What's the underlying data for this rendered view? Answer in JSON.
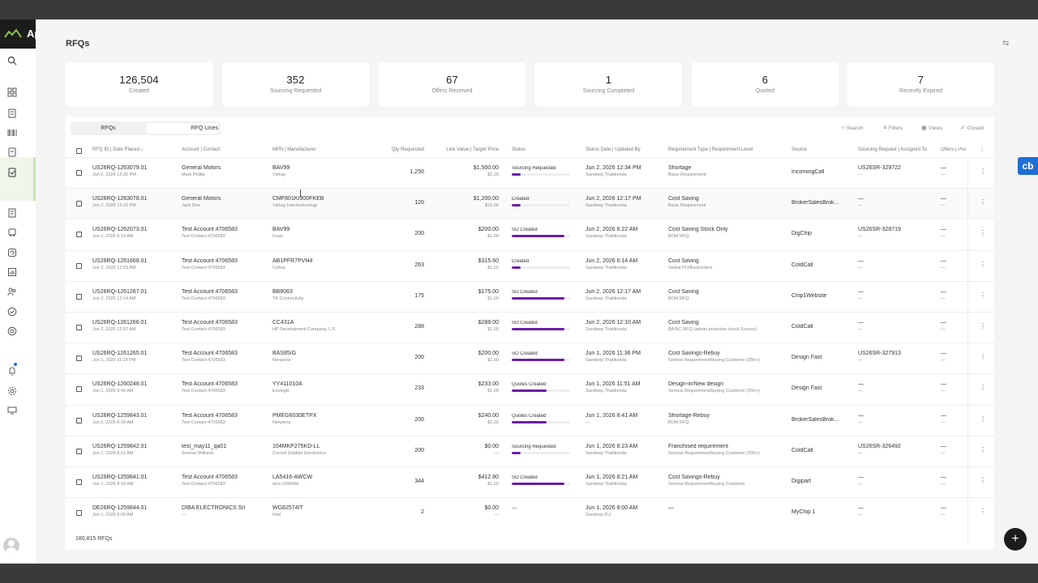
{
  "app": {
    "logo_text": "Ap",
    "page_title": "RFQs"
  },
  "sidebar": {
    "icons": [
      "search-icon",
      "dashboard-icon",
      "building-icon",
      "barcode-icon",
      "document-icon",
      "rfq-icon",
      "report-icon",
      "truck-icon",
      "cycle-icon",
      "chart-icon",
      "users-icon",
      "check-icon",
      "target-icon",
      "bell-icon",
      "gear-icon",
      "monitor-icon"
    ]
  },
  "cards": [
    {
      "value": "126,504",
      "label": "Created"
    },
    {
      "value": "352",
      "label": "Sourcing Requested"
    },
    {
      "value": "67",
      "label": "Offers Received"
    },
    {
      "value": "1",
      "label": "Sourcing Completed"
    },
    {
      "value": "6",
      "label": "Quoted"
    },
    {
      "value": "7",
      "label": "Recently Expired"
    }
  ],
  "tabs": {
    "rfqs": "RFQs",
    "rfq_lines": "RFQ Lines"
  },
  "tools": {
    "search": "Search",
    "filters": "Filters",
    "views": "Views",
    "closed": "Closed"
  },
  "headers": {
    "rfq": "RFQ ID | Date Placed ↓",
    "account": "Account | Contact",
    "mpn": "MPN | Manufacturer",
    "qty": "Qty Requested",
    "value": "Line Value | Target Price",
    "status": "Status",
    "status_date": "Status Date | Updated By",
    "req": "Requirement Type | Requirement Level",
    "source": "Source",
    "sourcing": "Sourcing Request | Assigned To",
    "offers": "Offers | Pric"
  },
  "rows": [
    {
      "id": "US26RQ-1263079.01",
      "date": "Jun 2, 2026 12:20 PM",
      "account": "General Motors",
      "contact": "Mark Phillip",
      "mpn": "BAV99",
      "mfr": "Vishay",
      "qty": "1,250",
      "value": "$1,500.00",
      "target": "$1.20",
      "status": "Sourcing Requested",
      "progress": 0.15,
      "sdate": "Jun 2, 2026 12:34 PM",
      "by": "Sandeep Thatikonda",
      "rtype": "Shortage",
      "rlevel": "Basic Requirement",
      "source": "IncomingCall",
      "sreq": "US26SR-329722",
      "assigned": "—",
      "offers": "—",
      "price": "—"
    },
    {
      "id": "US26RQ-1263078.01",
      "date": "Jun 2, 2026 12:15 PM",
      "account": "General Motors",
      "contact": "Jack Doe",
      "mpn": "CMF601KI300FKEB",
      "mfr": "Vishay Intertechnology",
      "qty": "120",
      "value": "$1,200.00",
      "target": "$10.00",
      "status": "Created",
      "progress": 0.15,
      "sdate": "Jun 2, 2026 12:17 PM",
      "by": "Sandeep Thatikonda",
      "rtype": "Cost Saving",
      "rlevel": "Basic Requirement",
      "source": "BrokerSalesBrok...",
      "sreq": "—",
      "assigned": "—",
      "offers": "—",
      "price": "—"
    },
    {
      "id": "US26RQ-1262073.01",
      "date": "Jun 2, 2026 6:13 AM",
      "account": "Test Account 4706583",
      "contact": "Test Contact-4706583",
      "mpn": "BAV99",
      "mfr": "Invac",
      "qty": "200",
      "value": "$200.00",
      "target": "$1.00",
      "status": "SO Created",
      "progress": 0.9,
      "sdate": "Jun 2, 2026 6:22 AM",
      "by": "Sandeep Thatikonda",
      "rtype": "Cost Saving Stock Only",
      "rlevel": "BOM RFQ",
      "source": "DigChip",
      "sreq": "US26SR-328719",
      "assigned": "—",
      "offers": "—",
      "price": "—"
    },
    {
      "id": "US26RQ-1261668.01",
      "date": "Jun 2, 2026 12:59 AM",
      "account": "Test Account 4706583",
      "contact": "Test Contact-4706583",
      "mpn": "AB1PFR7PVH4",
      "mfr": "Cytiva",
      "qty": "263",
      "value": "$315.60",
      "target": "$1.20",
      "status": "Created",
      "progress": 0.15,
      "sdate": "Jun 2, 2026 6:14 AM",
      "by": "Sandeep Thatikonda",
      "rtype": "Cost Saving",
      "rlevel": "Verbal PO/Backorders",
      "source": "ColdCall",
      "sreq": "—",
      "assigned": "—",
      "offers": "—",
      "price": "—"
    },
    {
      "id": "US26RQ-1261267.01",
      "date": "Jun 2, 2026 12:14 AM",
      "account": "Test Account 4706583",
      "contact": "Test Contact-4706583",
      "mpn": "BB8063",
      "mfr": "TE Connectivity",
      "qty": "175",
      "value": "$175.00",
      "target": "$1.00",
      "status": "SO Created",
      "progress": 0.9,
      "sdate": "Jun 2, 2026 12:17 AM",
      "by": "Sandeep Thatikonda",
      "rtype": "Cost Saving",
      "rlevel": "BOM RFQ",
      "source": "Chip1Website",
      "sreq": "—",
      "assigned": "—",
      "offers": "—",
      "price": "—"
    },
    {
      "id": "US26RQ-1261266.01",
      "date": "Jun 2, 2026 12:07 AM",
      "account": "Test Account 4706583",
      "contact": "Test Contact-4706583",
      "mpn": "CC431A",
      "mfr": "HP Development Company, L.P.",
      "qty": "288",
      "value": "$288.00",
      "target": "$1.00",
      "status": "SO Created",
      "progress": 0.9,
      "sdate": "Jun 2, 2026 12:10 AM",
      "by": "Sandeep Thatikonda",
      "rtype": "Cost Saving",
      "rlevel": "BASIC RFQ (admin proactive check Excess)",
      "source": "ColdCall",
      "sreq": "—",
      "assigned": "—",
      "offers": "—",
      "price": "—"
    },
    {
      "id": "US26RQ-1261265.01",
      "date": "Jun 1, 2026 11:29 PM",
      "account": "Test Account 4706583",
      "contact": "Test Contact-4706583",
      "mpn": "BAS85/G",
      "mfr": "Nexperia",
      "qty": "200",
      "value": "$200.00",
      "target": "$1.00",
      "status": "SO Created",
      "progress": 0.9,
      "sdate": "Jun 1, 2026 11:36 PM",
      "by": "Sandeep Thatikonda",
      "rtype": "Cost Savings-Rebuy",
      "rlevel": "Serious Requirement/buying Customer (25K+)",
      "source": "Design Fast",
      "sreq": "US26SR-327913",
      "assigned": "—",
      "offers": "—",
      "price": "—"
    },
    {
      "id": "US26RQ-1260248.01",
      "date": "Jun 1, 2026 9:44 AM",
      "account": "Test Account 4706583",
      "contact": "Test Contact-4706583",
      "mpn": "YY411010A",
      "mfr": "Enviegis",
      "qty": "233",
      "value": "$233.00",
      "target": "$1.00",
      "status": "Quotes Created",
      "progress": 0.6,
      "sdate": "Jun 1, 2026 11:51 AM",
      "by": "Sandeep Thatikonda",
      "rtype": "Design-in/New design",
      "rlevel": "Serious Requirement/buying Customer (25K+)",
      "source": "Design Fast",
      "sreq": "—",
      "assigned": "—",
      "offers": "—",
      "price": "—"
    },
    {
      "id": "US26RQ-1259843.01",
      "date": "Jun 1, 2026 8:39 AM",
      "account": "Test Account 4706583",
      "contact": "Test Contact-4706583",
      "mpn": "PMEG6030ETPX",
      "mfr": "Nexperia",
      "qty": "200",
      "value": "$240.00",
      "target": "$1.20",
      "status": "Quotes Created",
      "progress": 0.6,
      "sdate": "Jun 1, 2026 8:41 AM",
      "by": "—",
      "rtype": "Shortage-Rebuy",
      "rlevel": "BOM RFQ",
      "source": "BrokerSalesBrok...",
      "sreq": "—",
      "assigned": "—",
      "offers": "—",
      "price": "—"
    },
    {
      "id": "US26RQ-1259842.01",
      "date": "Jun 1, 2026 8:21 AM",
      "account": "test_may11_qa01",
      "contact": "Serena Williams",
      "mpn": "104MKP275KD-LL",
      "mfr": "Cornell Dubilier Electronics",
      "qty": "200",
      "value": "$0.00",
      "target": "—",
      "status": "Sourcing Requested",
      "progress": 0.15,
      "sdate": "Jun 1, 2026 8:23 AM",
      "by": "Sandeep Thatikonda",
      "rtype": "Franchised requirement",
      "rlevel": "Serious Requirement/buying Customer (25K+)",
      "source": "ColdCall",
      "sreq": "US26SR-326492",
      "assigned": "—",
      "offers": "—",
      "price": "—"
    },
    {
      "id": "US26RQ-1259841.01",
      "date": "Jun 1, 2026 8:16 AM",
      "account": "Test Account 4706583",
      "contact": "Test Contact-4706583",
      "mpn": "LA5416-AWCW",
      "mfr": "ams OSRAM",
      "qty": "344",
      "value": "$412.80",
      "target": "$1.20",
      "status": "SO Created",
      "progress": 0.9,
      "sdate": "Jun 1, 2026 8:21 AM",
      "by": "Sandeep Thatikonda",
      "rtype": "Cost Savings-Rebuy",
      "rlevel": "Serious Requirement/buying Customer",
      "source": "Digipart",
      "sreq": "—",
      "assigned": "—",
      "offers": "—",
      "price": "—"
    },
    {
      "id": "DE26RQ-1259844.01",
      "date": "Jun 1, 2026 8:00 AM",
      "account": "DIBA ELECTRONICS Srl",
      "contact": "—",
      "mpn": "WG82574IT",
      "mfr": "Intel",
      "qty": "2",
      "value": "$0.00",
      "target": "—",
      "status": "—",
      "progress": 0,
      "sdate": "Jun 1, 2026 8:00 AM",
      "by": "Sandeep EU",
      "rtype": "—",
      "rlevel": "",
      "source": "MyChip 1",
      "sreq": "—",
      "assigned": "—",
      "offers": "—",
      "price": "—"
    }
  ],
  "footer": {
    "count": "180,815 RFQs"
  },
  "fab": {
    "label": "+"
  },
  "extension": {
    "badge": "cb"
  },
  "colors": {
    "accent": "#6a1ea7",
    "logo_bg": "#1c1c1c",
    "brand_green": "#8bc34a"
  }
}
